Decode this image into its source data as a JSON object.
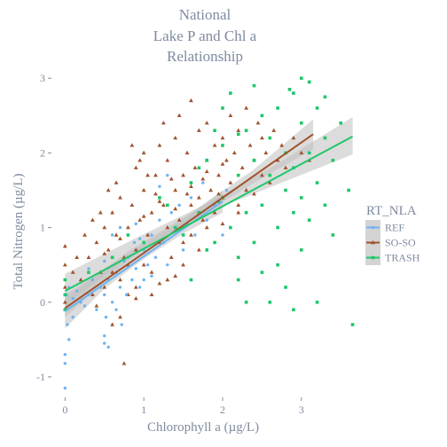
{
  "chart_data": {
    "type": "scatter",
    "title": [
      "National",
      "Lake P and Chl a",
      "Relationship"
    ],
    "xlabel": "Chlorophyll a (µg/L)",
    "ylabel": "Total Nitrogen (µg/L)",
    "xlim": [
      -0.15,
      3.7
    ],
    "ylim": [
      -1.25,
      3.05
    ],
    "x_ticks": [
      0,
      1,
      2,
      3
    ],
    "y_ticks": [
      -1,
      0,
      1,
      2,
      3
    ],
    "grid": false,
    "legend": {
      "title": "RT_NLA",
      "position": "right",
      "entries": [
        "REF",
        "SO-SO",
        "TRASH"
      ]
    },
    "series": [
      {
        "name": "REF",
        "color": "#6fb3ef",
        "marker": "circle",
        "fit": {
          "x0": 0.0,
          "x1": 2.0,
          "y0": -0.12,
          "y1": 1.35
        },
        "band": {
          "x": [
            0.0,
            0.5,
            1.0,
            1.5,
            2.0
          ],
          "lower": [
            -0.35,
            0.18,
            0.58,
            0.92,
            1.2
          ],
          "upper": [
            0.1,
            0.45,
            0.78,
            1.1,
            1.5
          ]
        },
        "points": [
          [
            0.0,
            -0.7
          ],
          [
            0.0,
            -1.15
          ],
          [
            0.0,
            -0.82
          ],
          [
            0.02,
            0.1
          ],
          [
            0.03,
            -0.3
          ],
          [
            0.05,
            0.2
          ],
          [
            0.1,
            -0.2
          ],
          [
            0.1,
            0.05
          ],
          [
            0.2,
            0.0
          ],
          [
            0.3,
            0.1
          ],
          [
            0.4,
            -0.1
          ],
          [
            0.45,
            0.2
          ],
          [
            0.5,
            -0.45
          ],
          [
            0.5,
            -0.55
          ],
          [
            0.5,
            0.1
          ],
          [
            0.52,
            -0.2
          ],
          [
            0.55,
            0.3
          ],
          [
            0.6,
            0.0
          ],
          [
            0.65,
            0.4
          ],
          [
            0.7,
            0.2
          ],
          [
            0.72,
            -0.3
          ],
          [
            0.75,
            0.55
          ],
          [
            0.78,
            0.1
          ],
          [
            0.8,
            0.6
          ],
          [
            0.85,
            0.3
          ],
          [
            0.88,
            0.8
          ],
          [
            0.9,
            0.45
          ],
          [
            0.95,
            0.2
          ],
          [
            1.0,
            0.7
          ],
          [
            1.05,
            0.5
          ],
          [
            1.1,
            0.9
          ],
          [
            1.15,
            0.6
          ],
          [
            1.2,
            1.1
          ],
          [
            1.25,
            0.8
          ],
          [
            1.3,
            0.5
          ],
          [
            1.35,
            1.2
          ],
          [
            1.4,
            0.95
          ],
          [
            1.45,
            1.3
          ],
          [
            1.5,
            0.7
          ],
          [
            1.55,
            1.05
          ],
          [
            1.6,
            1.4
          ],
          [
            1.65,
            0.9
          ],
          [
            1.7,
            1.2
          ],
          [
            1.75,
            1.6
          ],
          [
            1.8,
            1.1
          ],
          [
            1.9,
            1.3
          ],
          [
            2.0,
            0.9
          ],
          [
            2.05,
            1.5
          ],
          [
            0.6,
            0.9
          ],
          [
            0.7,
            1.0
          ],
          [
            0.35,
            0.3
          ],
          [
            0.25,
            -0.05
          ],
          [
            0.15,
            0.15
          ],
          [
            0.5,
            0.55
          ],
          [
            0.9,
            1.05
          ],
          [
            1.0,
            0.3
          ],
          [
            1.2,
            1.55
          ],
          [
            1.3,
            1.7
          ],
          [
            0.3,
            0.45
          ],
          [
            0.05,
            -0.5
          ],
          [
            0.55,
            -0.6
          ],
          [
            0.65,
            -0.1
          ],
          [
            0.95,
            0.85
          ],
          [
            1.1,
            0.35
          ]
        ]
      },
      {
        "name": "SO-SO",
        "color": "#a0522d",
        "marker": "triangle",
        "fit": {
          "x0": 0.0,
          "x1": 3.15,
          "y0": -0.08,
          "y1": 2.25
        },
        "band": {
          "x": [
            0.0,
            0.8,
            1.6,
            2.4,
            3.15
          ],
          "lower": [
            -0.2,
            0.55,
            1.08,
            1.6,
            2.05
          ],
          "upper": [
            0.05,
            0.68,
            1.2,
            1.78,
            2.45
          ]
        },
        "points": [
          [
            0.0,
            0.2
          ],
          [
            0.0,
            0.5
          ],
          [
            0.0,
            0.75
          ],
          [
            0.0,
            0.0
          ],
          [
            0.1,
            0.4
          ],
          [
            0.2,
            0.3
          ],
          [
            0.3,
            0.6
          ],
          [
            0.35,
            0.1
          ],
          [
            0.4,
            0.8
          ],
          [
            0.45,
            0.4
          ],
          [
            0.5,
            1.0
          ],
          [
            0.5,
            0.2
          ],
          [
            0.55,
            0.7
          ],
          [
            0.6,
            1.2
          ],
          [
            0.6,
            0.4
          ],
          [
            0.65,
            0.9
          ],
          [
            0.7,
            0.3
          ],
          [
            0.7,
            1.4
          ],
          [
            0.75,
            0.6
          ],
          [
            0.75,
            -0.82
          ],
          [
            0.8,
            1.0
          ],
          [
            0.8,
            0.5
          ],
          [
            0.85,
            1.3
          ],
          [
            0.9,
            0.7
          ],
          [
            0.9,
            1.8
          ],
          [
            0.95,
            1.1
          ],
          [
            1.0,
            0.5
          ],
          [
            1.0,
            1.5
          ],
          [
            1.0,
            2.0
          ],
          [
            1.05,
            0.9
          ],
          [
            1.1,
            1.2
          ],
          [
            1.1,
            0.4
          ],
          [
            1.15,
            1.7
          ],
          [
            1.2,
            0.8
          ],
          [
            1.2,
            2.1
          ],
          [
            1.25,
            1.3
          ],
          [
            1.3,
            1.0
          ],
          [
            1.3,
            1.9
          ],
          [
            1.35,
            0.6
          ],
          [
            1.4,
            1.5
          ],
          [
            1.4,
            2.2
          ],
          [
            1.45,
            1.1
          ],
          [
            1.5,
            1.7
          ],
          [
            1.5,
            0.8
          ],
          [
            1.55,
            2.0
          ],
          [
            1.6,
            1.3
          ],
          [
            1.6,
            0.9
          ],
          [
            1.65,
            1.8
          ],
          [
            1.7,
            2.3
          ],
          [
            1.7,
            1.4
          ],
          [
            1.75,
            1.1
          ],
          [
            1.8,
            1.9
          ],
          [
            1.8,
            2.4
          ],
          [
            1.85,
            1.5
          ],
          [
            1.9,
            2.1
          ],
          [
            1.9,
            1.2
          ],
          [
            1.95,
            1.7
          ],
          [
            2.0,
            2.2
          ],
          [
            2.0,
            1.4
          ],
          [
            2.05,
            1.9
          ],
          [
            2.1,
            2.5
          ],
          [
            2.1,
            1.6
          ],
          [
            2.15,
            2.0
          ],
          [
            2.2,
            1.3
          ],
          [
            2.2,
            2.3
          ],
          [
            2.25,
            1.8
          ],
          [
            2.3,
            2.6
          ],
          [
            2.3,
            1.5
          ],
          [
            2.35,
            2.1
          ],
          [
            2.4,
            1.9
          ],
          [
            2.45,
            2.4
          ],
          [
            2.5,
            1.7
          ],
          [
            2.5,
            2.2
          ],
          [
            2.55,
            2.0
          ],
          [
            2.6,
            1.6
          ],
          [
            2.65,
            2.3
          ],
          [
            2.7,
            1.9
          ],
          [
            2.75,
            2.1
          ],
          [
            2.8,
            1.8
          ],
          [
            2.9,
            2.2
          ],
          [
            3.0,
            2.0
          ],
          [
            3.1,
            1.9
          ],
          [
            0.45,
            1.2
          ],
          [
            0.55,
            1.5
          ],
          [
            0.65,
            1.6
          ],
          [
            0.85,
            2.1
          ],
          [
            0.95,
            1.9
          ],
          [
            1.05,
            1.7
          ],
          [
            1.25,
            2.4
          ],
          [
            1.45,
            2.5
          ],
          [
            1.6,
            2.7
          ],
          [
            0.25,
            0.9
          ],
          [
            0.15,
            0.6
          ],
          [
            0.35,
            1.1
          ],
          [
            0.8,
            0.1
          ],
          [
            0.9,
            0.2
          ],
          [
            1.1,
            0.1
          ],
          [
            1.3,
            0.3
          ],
          [
            1.5,
            0.5
          ],
          [
            1.7,
            0.7
          ],
          [
            0.6,
            -0.3
          ],
          [
            0.7,
            -0.2
          ],
          [
            0.4,
            -0.05
          ],
          [
            0.9,
            0.05
          ],
          [
            1.2,
            0.25
          ],
          [
            1.4,
            0.35
          ],
          [
            1.8,
            1.0
          ],
          [
            2.0,
            1.05
          ],
          [
            2.2,
            1.2
          ],
          [
            2.4,
            1.45
          ],
          [
            1.15,
            1.45
          ],
          [
            1.35,
            1.65
          ],
          [
            1.55,
            1.45
          ],
          [
            1.75,
            1.65
          ],
          [
            1.95,
            1.45
          ],
          [
            0.5,
            0.65
          ],
          [
            0.7,
            0.85
          ],
          [
            1.0,
            1.15
          ],
          [
            1.2,
            1.35
          ],
          [
            1.4,
            1.25
          ],
          [
            1.6,
            1.55
          ],
          [
            1.8,
            1.75
          ],
          [
            2.0,
            1.85
          ]
        ]
      },
      {
        "name": "TRASH",
        "color": "#1ec76a",
        "marker": "square",
        "fit": {
          "x0": 0.0,
          "x1": 3.65,
          "y0": 0.15,
          "y1": 2.22
        },
        "band": {
          "x": [
            0.0,
            0.9,
            1.8,
            2.7,
            3.65
          ],
          "lower": [
            -0.05,
            0.68,
            1.2,
            1.58,
            1.98
          ],
          "upper": [
            0.38,
            0.86,
            1.32,
            1.86,
            2.48
          ]
        },
        "points": [
          [
            0.0,
            0.1
          ],
          [
            0.0,
            0.3
          ],
          [
            0.0,
            -0.1
          ],
          [
            0.3,
            0.4
          ],
          [
            0.6,
            0.6
          ],
          [
            1.0,
            0.8
          ],
          [
            1.2,
            1.4
          ],
          [
            1.4,
            1.0
          ],
          [
            1.5,
            0.9
          ],
          [
            1.6,
            1.6
          ],
          [
            1.7,
            1.2
          ],
          [
            1.8,
            1.9
          ],
          [
            1.9,
            0.8
          ],
          [
            2.0,
            1.4
          ],
          [
            2.0,
            2.1
          ],
          [
            2.1,
            1.0
          ],
          [
            2.2,
            1.7
          ],
          [
            2.2,
            0.6
          ],
          [
            2.3,
            2.3
          ],
          [
            2.3,
            1.2
          ],
          [
            2.4,
            0.8
          ],
          [
            2.4,
            1.9
          ],
          [
            2.5,
            2.5
          ],
          [
            2.5,
            1.3
          ],
          [
            2.5,
            0.4
          ],
          [
            2.6,
            1.7
          ],
          [
            2.6,
            2.2
          ],
          [
            2.7,
            1.0
          ],
          [
            2.7,
            2.6
          ],
          [
            2.7,
            0.5
          ],
          [
            2.8,
            1.5
          ],
          [
            2.8,
            2.0
          ],
          [
            2.8,
            0.2
          ],
          [
            2.9,
            2.8
          ],
          [
            2.9,
            1.2
          ],
          [
            2.9,
            1.8
          ],
          [
            3.0,
            2.4
          ],
          [
            3.0,
            0.7
          ],
          [
            3.0,
            1.4
          ],
          [
            3.1,
            2.95
          ],
          [
            3.1,
            2.0
          ],
          [
            3.1,
            1.1
          ],
          [
            3.2,
            1.6
          ],
          [
            3.2,
            2.6
          ],
          [
            3.2,
            0.0
          ],
          [
            3.3,
            2.2
          ],
          [
            3.3,
            1.3
          ],
          [
            3.4,
            1.9
          ],
          [
            3.4,
            0.9
          ],
          [
            3.5,
            2.4
          ],
          [
            3.6,
            1.5
          ],
          [
            3.65,
            -0.3
          ],
          [
            2.1,
            2.8
          ],
          [
            2.0,
            2.6
          ],
          [
            1.9,
            2.3
          ],
          [
            2.4,
            2.9
          ],
          [
            2.2,
            0.3
          ],
          [
            2.3,
            0.0
          ],
          [
            2.6,
            0.0
          ],
          [
            2.9,
            -0.1
          ],
          [
            1.7,
            1.8
          ],
          [
            1.8,
            0.7
          ],
          [
            1.6,
            0.3
          ],
          [
            0.8,
            0.9
          ],
          [
            1.3,
            1.3
          ],
          [
            3.0,
            3.0
          ],
          [
            2.85,
            2.85
          ],
          [
            3.3,
            2.75
          ],
          [
            2.2,
            2.25
          ],
          [
            1.95,
            1.35
          ]
        ]
      }
    ]
  }
}
